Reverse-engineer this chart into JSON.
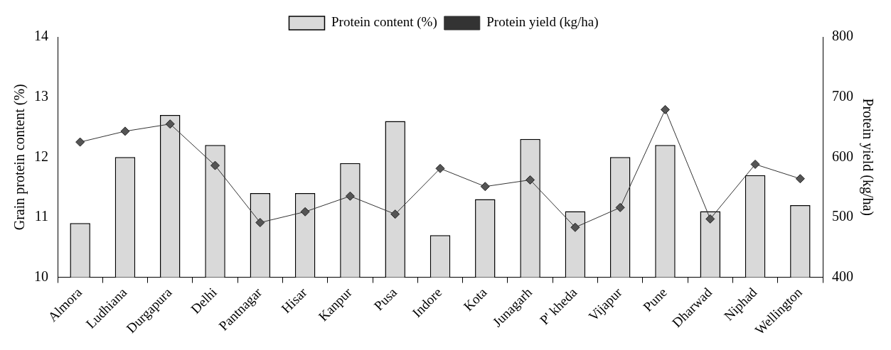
{
  "chart_data": {
    "type": "bar",
    "ylabel": "Grain protein content (%)",
    "y2label": "Protein yield (kg/ha)",
    "categories": [
      "Almora",
      "Ludhiana",
      "Durgapura",
      "Delhi",
      "Pantnagar",
      "Hisar",
      "Kanpur",
      "Pusa",
      "Indore",
      "Kota",
      "Junagarh",
      "P' kheda",
      "Vijapur",
      "Pune",
      "Dharwad",
      "Niphad",
      "Wellington"
    ],
    "series": [
      {
        "name": "Protein content (%)",
        "color": "#d9d9d9",
        "values": [
          10.9,
          12.0,
          12.7,
          12.2,
          11.4,
          11.4,
          11.9,
          12.6,
          10.7,
          11.3,
          12.3,
          11.1,
          12.0,
          12.2,
          11.1,
          11.7,
          11.2
        ]
      },
      {
        "name": "Protein yield (kg/ha)",
        "type": "line",
        "axis": "y2",
        "color": "#333333",
        "marker": "diamond",
        "values": [
          625,
          643,
          655,
          586,
          491,
          509,
          535,
          505,
          581,
          551,
          562,
          483,
          516,
          679,
          497,
          588,
          564
        ]
      }
    ],
    "ylim": [
      10,
      14
    ],
    "yticks": [
      10,
      11,
      12,
      13,
      14
    ],
    "y2lim": [
      400,
      800
    ],
    "y2ticks": [
      400,
      500,
      600,
      700,
      800
    ],
    "legend": "top",
    "grid": false
  }
}
